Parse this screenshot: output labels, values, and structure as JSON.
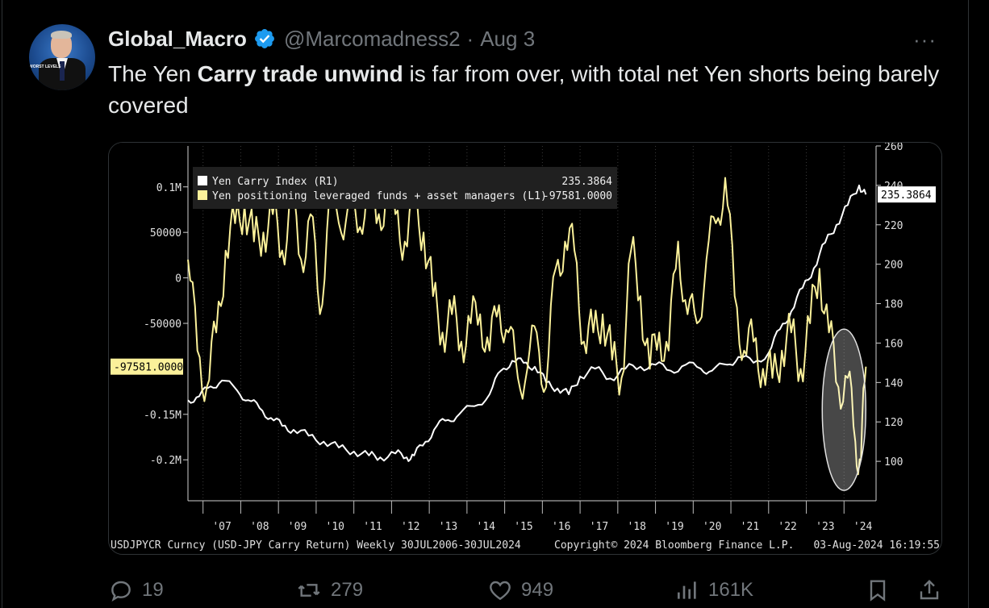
{
  "tweet": {
    "author_name": "Global_Macro",
    "handle": "@Marcomadness2",
    "separator": "·",
    "date": "Aug 3",
    "more": "···",
    "text_before": "The Yen ",
    "text_bold": "Carry trade unwind",
    "text_after": " is far from over, with total net Yen shorts being barely covered",
    "avatar_text": "WORST LEVELS"
  },
  "actions": {
    "replies": "19",
    "reposts": "279",
    "likes": "949",
    "views": "161K"
  },
  "chart_data": {
    "type": "line",
    "title": "",
    "legend": [
      {
        "label": "Yen Carry Index  (R1)",
        "value": "235.3864",
        "color": "#ffffff"
      },
      {
        "label": "Yen positioning leveraged funds + asset managers (L1)",
        "value": "-97581.0000",
        "color": "#fbf19a"
      }
    ],
    "x_ticks": [
      "'07",
      "'08",
      "'09",
      "'10",
      "'11",
      "'12",
      "'13",
      "'14",
      "'15",
      "'16",
      "'17",
      "'18",
      "'19",
      "'20",
      "'21",
      "'22",
      "'23",
      "'24"
    ],
    "left_axis": {
      "ticks": [
        "0.1M",
        "50000",
        "0",
        "-50000",
        "-0.15M",
        "-0.2M"
      ],
      "tick_values": [
        100000,
        50000,
        0,
        -50000,
        -150000,
        -200000
      ],
      "ylim": [
        -245000,
        145000
      ],
      "last_value_label": "-97581.0000"
    },
    "right_axis": {
      "ticks": [
        "260",
        "240",
        "220",
        "200",
        "180",
        "160",
        "140",
        "120",
        "100"
      ],
      "tick_values": [
        260,
        240,
        220,
        200,
        180,
        160,
        140,
        120,
        100
      ],
      "ylim": [
        80,
        260
      ],
      "last_value_label": "235.3864"
    },
    "series": [
      {
        "name": "Yen Carry Index (R1)",
        "axis": "right",
        "color": "#ffffff",
        "x": [
          2006.6,
          2006.9,
          2007.2,
          2007.5,
          2007.9,
          2008.2,
          2008.5,
          2008.8,
          2009.1,
          2009.4,
          2009.8,
          2010.2,
          2010.6,
          2011.0,
          2011.4,
          2011.7,
          2012.1,
          2012.4,
          2012.6,
          2012.9,
          2013.2,
          2013.5,
          2013.8,
          2014.2,
          2014.6,
          2014.9,
          2015.2,
          2015.5,
          2015.8,
          2016.1,
          2016.4,
          2016.7,
          2017.0,
          2017.4,
          2017.8,
          2018.2,
          2018.6,
          2019.0,
          2019.4,
          2019.8,
          2020.2,
          2020.5,
          2020.9,
          2021.2,
          2021.6,
          2022.0,
          2022.3,
          2022.6,
          2022.9,
          2023.2,
          2023.5,
          2023.8,
          2024.1,
          2024.4,
          2024.58
        ],
        "y": [
          131,
          133,
          138,
          141,
          136,
          131,
          127,
          122,
          118,
          116,
          113,
          110,
          107,
          105,
          103,
          102,
          104,
          102,
          103,
          110,
          118,
          121,
          124,
          128,
          134,
          146,
          151,
          150,
          148,
          140,
          137,
          134,
          143,
          147,
          142,
          147,
          148,
          149,
          146,
          149,
          147,
          146,
          149,
          153,
          150,
          155,
          167,
          176,
          188,
          198,
          211,
          220,
          230,
          240,
          235.3864
        ]
      },
      {
        "name": "Yen positioning leveraged funds + asset managers (L1)",
        "axis": "left",
        "color": "#fbf19a",
        "x": [
          2006.6,
          2006.85,
          2007.1,
          2007.35,
          2007.6,
          2007.85,
          2008.1,
          2008.35,
          2008.6,
          2008.85,
          2009.1,
          2009.35,
          2009.6,
          2009.85,
          2010.1,
          2010.35,
          2010.6,
          2010.85,
          2011.1,
          2011.35,
          2011.6,
          2011.85,
          2012.1,
          2012.35,
          2012.6,
          2012.85,
          2013.1,
          2013.35,
          2013.6,
          2013.85,
          2014.1,
          2014.35,
          2014.6,
          2014.85,
          2015.1,
          2015.35,
          2015.6,
          2015.85,
          2016.1,
          2016.35,
          2016.6,
          2016.85,
          2017.1,
          2017.35,
          2017.6,
          2017.85,
          2018.1,
          2018.35,
          2018.6,
          2018.85,
          2019.1,
          2019.35,
          2019.6,
          2019.85,
          2020.1,
          2020.35,
          2020.6,
          2020.85,
          2021.1,
          2021.35,
          2021.6,
          2021.85,
          2022.1,
          2022.35,
          2022.6,
          2022.85,
          2023.1,
          2023.35,
          2023.6,
          2023.85,
          2024.1,
          2024.3,
          2024.45,
          2024.58
        ],
        "y": [
          20000,
          -80000,
          -120000,
          -60000,
          30000,
          60000,
          80000,
          40000,
          50000,
          70000,
          30000,
          80000,
          20000,
          70000,
          -40000,
          90000,
          60000,
          80000,
          50000,
          100000,
          60000,
          90000,
          70000,
          40000,
          80000,
          50000,
          -20000,
          -60000,
          -40000,
          -70000,
          -50000,
          -40000,
          -80000,
          -30000,
          -60000,
          -110000,
          -100000,
          -60000,
          -120000,
          10000,
          40000,
          30000,
          -70000,
          -60000,
          -40000,
          -90000,
          -110000,
          30000,
          -20000,
          -100000,
          -60000,
          -80000,
          40000,
          -40000,
          -50000,
          20000,
          60000,
          110000,
          -20000,
          -80000,
          -70000,
          -100000,
          -110000,
          -80000,
          -60000,
          -100000,
          -50000,
          10000,
          -60000,
          -120000,
          -110000,
          -180000,
          -200000,
          -97581
        ]
      }
    ],
    "footer_left": "USDJPYCR Curncy (USD-JPY Carry Return)  Weekly 30JUL2006-30JUL2024",
    "footer_mid": "Copyright© 2024 Bloomberg Finance L.P.",
    "footer_right": "03-Aug-2024 16:19:55"
  }
}
